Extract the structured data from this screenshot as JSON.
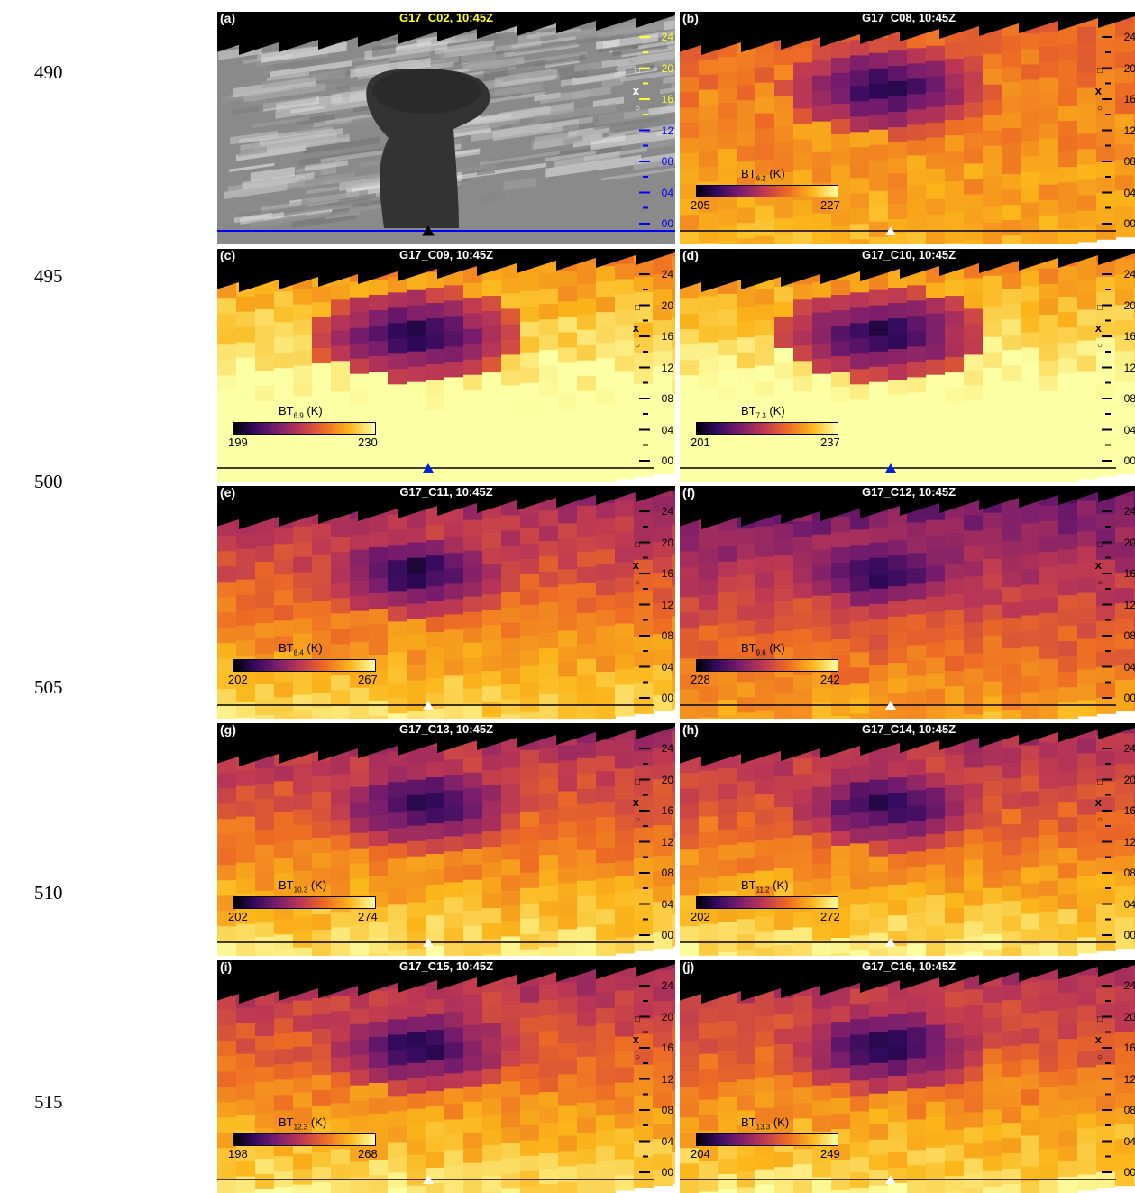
{
  "line_numbers": [
    "490",
    "495",
    "500",
    "505",
    "510",
    "515"
  ],
  "colors": {
    "gray_tick_yellow": "#ffff2a",
    "gray_tick_blue": "#0000ff",
    "marker_white": "#ffffff",
    "marker_blue": "#0022dd",
    "marker_black": "#000000"
  },
  "panels": [
    {
      "label": "(a)",
      "title": "G17_C02, 10:45Z",
      "kind": "visible"
    },
    {
      "label": "(b)",
      "title": "G17_C08, 10:45Z",
      "kind": "ir",
      "cb_label": "BT",
      "cb_sub": "6.2",
      "cb_unit": "(K)",
      "cb_min": "205",
      "cb_max": "227",
      "marker": "white"
    },
    {
      "label": "(c)",
      "title": "G17_C09, 10:45Z",
      "kind": "ir",
      "cb_label": "BT",
      "cb_sub": "6.9",
      "cb_unit": "(K)",
      "cb_min": "199",
      "cb_max": "230",
      "marker": "blue"
    },
    {
      "label": "(d)",
      "title": "G17_C10, 10:45Z",
      "kind": "ir",
      "cb_label": "BT",
      "cb_sub": "7.3",
      "cb_unit": "(K)",
      "cb_min": "201",
      "cb_max": "237",
      "marker": "blue"
    },
    {
      "label": "(e)",
      "title": "G17_C11, 10:45Z",
      "kind": "ir",
      "cb_label": "BT",
      "cb_sub": "8.4",
      "cb_unit": "(K)",
      "cb_min": "202",
      "cb_max": "267",
      "marker": "white"
    },
    {
      "label": "(f)",
      "title": "G17_C12, 10:45Z",
      "kind": "ir",
      "cb_label": "BT",
      "cb_sub": "9.6",
      "cb_unit": "(K)",
      "cb_min": "228",
      "cb_max": "242",
      "marker": "white"
    },
    {
      "label": "(g)",
      "title": "G17_C13, 10:45Z",
      "kind": "ir",
      "cb_label": "BT",
      "cb_sub": "10.3",
      "cb_unit": "(K)",
      "cb_min": "202",
      "cb_max": "274",
      "marker": "white"
    },
    {
      "label": "(h)",
      "title": "G17_C14, 10:45Z",
      "kind": "ir",
      "cb_label": "BT",
      "cb_sub": "11.2",
      "cb_unit": "(K)",
      "cb_min": "202",
      "cb_max": "272",
      "marker": "white"
    },
    {
      "label": "(i)",
      "title": "G17_C15, 10:45Z",
      "kind": "ir",
      "cb_label": "BT",
      "cb_sub": "12.3",
      "cb_unit": "(K)",
      "cb_min": "198",
      "cb_max": "268",
      "marker": "white"
    },
    {
      "label": "(j)",
      "title": "G17_C16, 10:45Z",
      "kind": "ir",
      "cb_label": "BT",
      "cb_sub": "13.3",
      "cb_unit": "(K)",
      "cb_min": "204",
      "cb_max": "249",
      "marker": "white"
    }
  ],
  "altitude_ticks": [
    "24",
    "20",
    "16",
    "12",
    "08",
    "04",
    "00"
  ],
  "symbols": {
    "square": "□",
    "cross": "x",
    "circle": "○"
  }
}
